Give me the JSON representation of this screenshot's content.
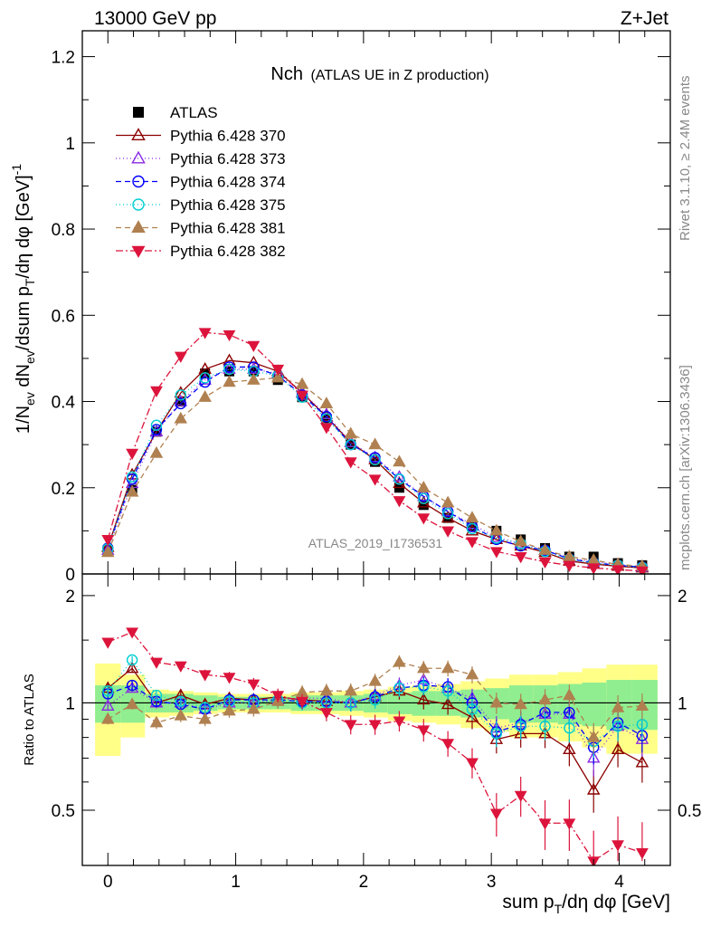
{
  "header": {
    "left": "13000 GeV pp",
    "right": "Z+Jet"
  },
  "side": {
    "rivet": "Rivet 3.1.10, ≥ 2.4M events",
    "mcplots": "mcplots.cern.ch [arXiv:1306.3436]"
  },
  "colors": {
    "band_inner": "#90ee90",
    "band_outer": "#ffff88",
    "atlas": "#000000"
  },
  "chart_data": [
    {
      "type": "scatter",
      "panel": "main",
      "title_main": "Nch",
      "title_sub": "(ATLAS UE in Z production)",
      "analysis_label": "ATLAS_2019_I1736531",
      "ylabel": "1/Nev dNev/dsum pT/dη dφ [GeV]^-1",
      "ylim": [
        0,
        1.26
      ],
      "xlim": [
        -0.2,
        4.4
      ],
      "yticks": [
        0,
        0.2,
        0.4,
        0.6,
        0.8,
        1,
        1.2
      ],
      "ytick_labels": [
        "0",
        "0.2",
        "0.4",
        "0.6",
        "0.8",
        "1",
        "1.2"
      ],
      "x": [
        0,
        0.19,
        0.38,
        0.57,
        0.76,
        0.95,
        1.14,
        1.33,
        1.52,
        1.71,
        1.9,
        2.09,
        2.28,
        2.47,
        2.66,
        2.85,
        3.04,
        3.23,
        3.42,
        3.61,
        3.8,
        3.99,
        4.18
      ],
      "series": [
        {
          "name": "ATLAS",
          "color": "#000000",
          "marker": "square-filled",
          "dash": "none",
          "values": [
            0.055,
            0.195,
            0.33,
            0.4,
            0.465,
            0.47,
            0.47,
            0.45,
            0.41,
            0.36,
            0.3,
            0.26,
            0.2,
            0.16,
            0.13,
            0.11,
            0.1,
            0.08,
            0.06,
            0.04,
            0.04,
            0.025,
            0.02
          ]
        },
        {
          "name": "Pythia 6.428 370",
          "color": "#8b0000",
          "marker": "triangle-up-open",
          "dash": "none",
          "values": [
            0.062,
            0.23,
            0.33,
            0.42,
            0.475,
            0.495,
            0.49,
            0.47,
            0.42,
            0.365,
            0.305,
            0.265,
            0.21,
            0.165,
            0.13,
            0.1,
            0.08,
            0.065,
            0.05,
            0.03,
            0.023,
            0.018,
            0.014
          ]
        },
        {
          "name": "Pythia 6.428 373",
          "color": "#8a2be2",
          "marker": "triangle-up-open",
          "dash": "1,3",
          "values": [
            0.055,
            0.21,
            0.33,
            0.4,
            0.45,
            0.475,
            0.475,
            0.465,
            0.42,
            0.37,
            0.305,
            0.27,
            0.225,
            0.18,
            0.145,
            0.115,
            0.085,
            0.07,
            0.055,
            0.037,
            0.028,
            0.022,
            0.016
          ]
        },
        {
          "name": "Pythia 6.428 374",
          "color": "#0000ff",
          "marker": "circle-open",
          "dash": "6,4",
          "values": [
            0.06,
            0.22,
            0.335,
            0.395,
            0.445,
            0.48,
            0.48,
            0.46,
            0.415,
            0.365,
            0.3,
            0.27,
            0.22,
            0.18,
            0.145,
            0.11,
            0.08,
            0.065,
            0.055,
            0.035,
            0.026,
            0.02,
            0.016
          ]
        },
        {
          "name": "Pythia 6.428 375",
          "color": "#00ced1",
          "marker": "circle-open",
          "dash": "1,3",
          "values": [
            0.058,
            0.225,
            0.345,
            0.415,
            0.455,
            0.475,
            0.47,
            0.46,
            0.41,
            0.36,
            0.3,
            0.265,
            0.22,
            0.175,
            0.14,
            0.105,
            0.083,
            0.07,
            0.052,
            0.034,
            0.025,
            0.02,
            0.015
          ]
        },
        {
          "name": "Pythia 6.428 381",
          "color": "#b08050",
          "marker": "triangle-up-filled",
          "dash": "6,4",
          "values": [
            0.05,
            0.19,
            0.28,
            0.36,
            0.41,
            0.445,
            0.45,
            0.455,
            0.44,
            0.395,
            0.325,
            0.3,
            0.26,
            0.2,
            0.165,
            0.13,
            0.1,
            0.075,
            0.055,
            0.04,
            0.032,
            0.022,
            0.018
          ]
        },
        {
          "name": "Pythia 6.428 382",
          "color": "#dc143c",
          "marker": "triangle-down-filled",
          "dash": "8,3,2,3",
          "values": [
            0.08,
            0.28,
            0.425,
            0.505,
            0.56,
            0.555,
            0.53,
            0.475,
            0.415,
            0.34,
            0.26,
            0.22,
            0.17,
            0.13,
            0.1,
            0.075,
            0.052,
            0.04,
            0.028,
            0.02,
            0.014,
            0.01,
            0.007
          ]
        }
      ]
    },
    {
      "type": "scatter",
      "panel": "ratio",
      "ylabel": "Ratio to ATLAS",
      "xlabel": "sum pT/dη dφ [GeV]",
      "ylim": [
        0.35,
        2.3
      ],
      "xlim": [
        -0.2,
        4.4
      ],
      "yticks": [
        0.5,
        1,
        2
      ],
      "ytick_labels": [
        "0.5",
        "1",
        "2"
      ],
      "xticks": [
        0,
        1,
        2,
        3,
        4
      ],
      "xtick_labels": [
        "0",
        "1",
        "2",
        "3",
        "4"
      ],
      "x": [
        0,
        0.19,
        0.38,
        0.57,
        0.76,
        0.95,
        1.14,
        1.33,
        1.52,
        1.71,
        1.9,
        2.09,
        2.28,
        2.47,
        2.66,
        2.85,
        3.04,
        3.23,
        3.42,
        3.61,
        3.8,
        3.99,
        4.18
      ],
      "bin_edges": [
        -0.1,
        0.1,
        0.29,
        0.48,
        0.67,
        0.86,
        1.05,
        1.24,
        1.43,
        1.62,
        1.81,
        2.0,
        2.19,
        2.38,
        2.57,
        2.76,
        2.95,
        3.14,
        3.33,
        3.52,
        3.71,
        3.9,
        4.1,
        4.3
      ],
      "band_inner_halfwidth": [
        0.12,
        0.12,
        0.06,
        0.06,
        0.05,
        0.04,
        0.04,
        0.04,
        0.05,
        0.05,
        0.05,
        0.06,
        0.07,
        0.08,
        0.08,
        0.09,
        0.1,
        0.12,
        0.12,
        0.13,
        0.14,
        0.16,
        0.16
      ],
      "band_outer_halfwidth": [
        0.29,
        0.2,
        0.09,
        0.08,
        0.07,
        0.06,
        0.06,
        0.06,
        0.07,
        0.07,
        0.08,
        0.09,
        0.11,
        0.12,
        0.13,
        0.15,
        0.17,
        0.2,
        0.2,
        0.22,
        0.25,
        0.28,
        0.28
      ],
      "series": [
        {
          "name": "Pythia 6.428 370",
          "color": "#8b0000",
          "marker": "triangle-up-open",
          "dash": "none",
          "err": 0.03,
          "values": [
            1.1,
            1.25,
            1.0,
            1.05,
            0.99,
            1.03,
            1.02,
            1.04,
            1.02,
            1.01,
            1.0,
            1.04,
            1.08,
            1.02,
            0.99,
            0.91,
            0.79,
            0.82,
            0.82,
            0.74,
            0.57,
            0.74,
            0.68
          ]
        },
        {
          "name": "Pythia 6.428 373",
          "color": "#8a2be2",
          "marker": "triangle-up-open",
          "dash": "1,3",
          "err": 0.03,
          "values": [
            0.98,
            1.1,
            1.0,
            1.0,
            0.96,
            1.0,
            1.0,
            1.02,
            1.03,
            1.03,
            1.0,
            1.05,
            1.12,
            1.16,
            1.1,
            1.03,
            0.85,
            0.88,
            0.93,
            0.93,
            0.7,
            0.86,
            0.79
          ]
        },
        {
          "name": "Pythia 6.428 374",
          "color": "#0000ff",
          "marker": "circle-open",
          "dash": "6,4",
          "err": 0.03,
          "values": [
            1.06,
            1.12,
            1.01,
            0.99,
            0.96,
            1.02,
            1.02,
            1.02,
            1.01,
            1.01,
            1.0,
            1.04,
            1.1,
            1.12,
            1.11,
            1.0,
            0.83,
            0.87,
            0.94,
            0.94,
            0.75,
            0.88,
            0.81
          ]
        },
        {
          "name": "Pythia 6.428 375",
          "color": "#00ced1",
          "marker": "circle-open",
          "dash": "1,3",
          "err": 0.03,
          "values": [
            1.08,
            1.32,
            1.05,
            1.01,
            0.97,
            1.01,
            1.0,
            1.02,
            1.0,
            1.0,
            1.0,
            1.02,
            1.1,
            1.11,
            1.08,
            0.96,
            0.82,
            0.86,
            0.86,
            0.85,
            0.78,
            0.86,
            0.87
          ]
        },
        {
          "name": "Pythia 6.428 381",
          "color": "#b08050",
          "marker": "triangle-up-filled",
          "dash": "6,4",
          "err": 0.03,
          "values": [
            0.9,
            0.99,
            0.88,
            0.92,
            0.9,
            0.95,
            0.96,
            1.01,
            1.07,
            1.08,
            1.08,
            1.15,
            1.3,
            1.25,
            1.25,
            1.2,
            1.0,
            0.99,
            1.02,
            1.05,
            0.8,
            0.97,
            0.98
          ]
        },
        {
          "name": "Pythia 6.428 382",
          "color": "#dc143c",
          "marker": "triangle-down-filled",
          "dash": "8,3,2,3",
          "err": 0.03,
          "values": [
            1.48,
            1.58,
            1.3,
            1.27,
            1.2,
            1.18,
            1.13,
            1.05,
            1.01,
            0.94,
            0.87,
            0.87,
            0.89,
            0.84,
            0.77,
            0.68,
            0.49,
            0.55,
            0.46,
            0.46,
            0.36,
            0.4,
            0.38
          ]
        }
      ]
    }
  ]
}
